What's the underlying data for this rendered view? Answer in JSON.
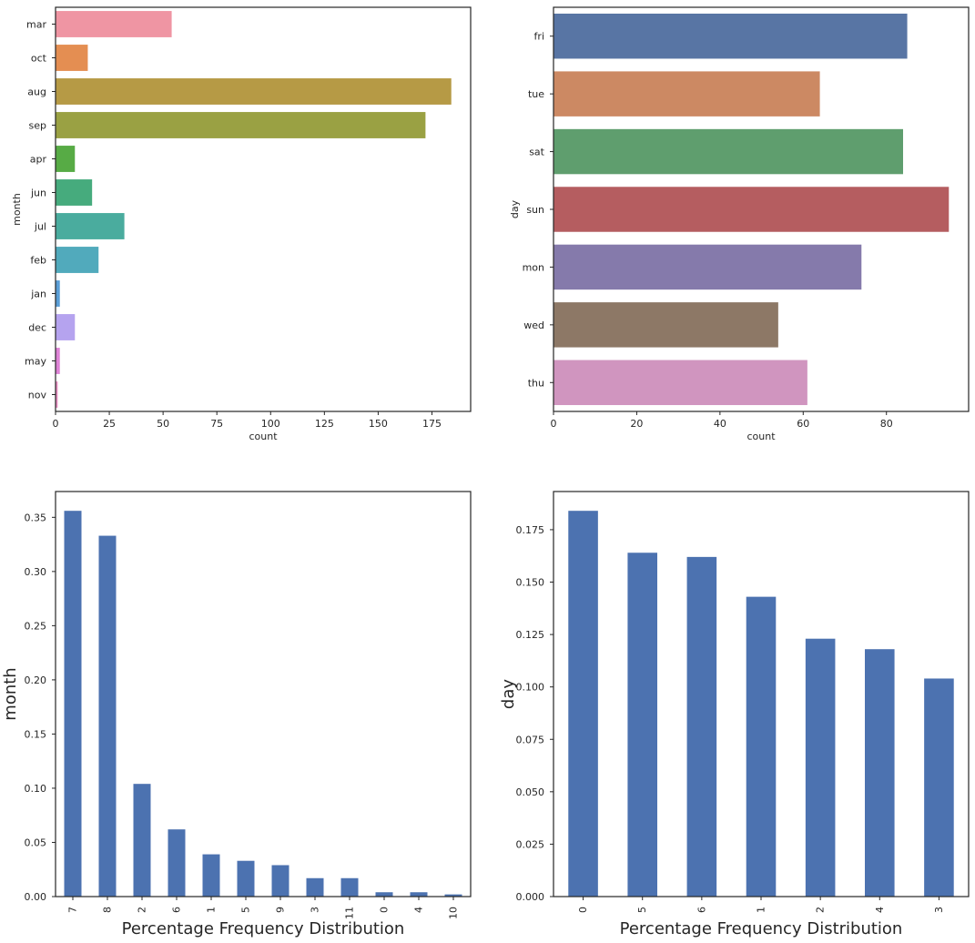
{
  "chart_data": [
    {
      "type": "bar",
      "orientation": "horizontal",
      "ylabel": "month",
      "xlabel": "count",
      "categories": [
        "mar",
        "oct",
        "aug",
        "sep",
        "apr",
        "jun",
        "jul",
        "feb",
        "jan",
        "dec",
        "may",
        "nov"
      ],
      "values": [
        54,
        15,
        184,
        172,
        9,
        17,
        32,
        20,
        2,
        9,
        2,
        1
      ],
      "colors": [
        "#ef95a3",
        "#e48e52",
        "#b69a45",
        "#9aa143",
        "#57ab45",
        "#46ab7d",
        "#4aac9e",
        "#51aabc",
        "#5a9ed6",
        "#b5a3ef",
        "#de83d6",
        "#e88dc2"
      ],
      "xlim": [
        0,
        193
      ],
      "xticks": [
        "0",
        "25",
        "50",
        "75",
        "100",
        "125",
        "150",
        "175"
      ],
      "xtick_values": [
        0,
        25,
        50,
        75,
        100,
        125,
        150,
        175
      ],
      "grid": false
    },
    {
      "type": "bar",
      "orientation": "horizontal",
      "ylabel": "day",
      "xlabel": "count",
      "categories": [
        "fri",
        "tue",
        "sat",
        "sun",
        "mon",
        "wed",
        "thu"
      ],
      "values": [
        85,
        64,
        84,
        95,
        74,
        54,
        61
      ],
      "colors": [
        "#5875a4",
        "#cc8963",
        "#5f9e6e",
        "#b55d60",
        "#857aab",
        "#8d7866",
        "#d095bf"
      ],
      "xlim": [
        0,
        99.75
      ],
      "xticks": [
        "0",
        "20",
        "40",
        "60",
        "80"
      ],
      "xtick_values": [
        0,
        20,
        40,
        60,
        80
      ],
      "grid": false
    },
    {
      "type": "bar",
      "orientation": "vertical",
      "ylabel": "month",
      "xlabel": "Percentage Frequency Distribution",
      "categories": [
        "7",
        "8",
        "2",
        "6",
        "1",
        "5",
        "9",
        "3",
        "11",
        "0",
        "4",
        "10"
      ],
      "values": [
        0.356,
        0.333,
        0.104,
        0.062,
        0.039,
        0.033,
        0.029,
        0.017,
        0.017,
        0.004,
        0.004,
        0.002
      ],
      "color": "#4c72b0",
      "ylim": [
        0,
        0.3738
      ],
      "yticks": [
        "0.00",
        "0.05",
        "0.10",
        "0.15",
        "0.20",
        "0.25",
        "0.30",
        "0.35"
      ],
      "ytick_values": [
        0,
        0.05,
        0.1,
        0.15,
        0.2,
        0.25,
        0.3,
        0.35
      ],
      "grid": false
    },
    {
      "type": "bar",
      "orientation": "vertical",
      "ylabel": "day",
      "xlabel": "Percentage Frequency Distribution",
      "categories": [
        "0",
        "5",
        "6",
        "1",
        "2",
        "4",
        "3"
      ],
      "values": [
        0.184,
        0.164,
        0.162,
        0.143,
        0.123,
        0.118,
        0.104
      ],
      "color": "#4c72b0",
      "ylim": [
        0,
        0.1932
      ],
      "yticks": [
        "0.000",
        "0.025",
        "0.050",
        "0.075",
        "0.100",
        "0.125",
        "0.150",
        "0.175"
      ],
      "ytick_values": [
        0,
        0.025,
        0.05,
        0.075,
        0.1,
        0.125,
        0.15,
        0.175
      ],
      "grid": false
    }
  ]
}
